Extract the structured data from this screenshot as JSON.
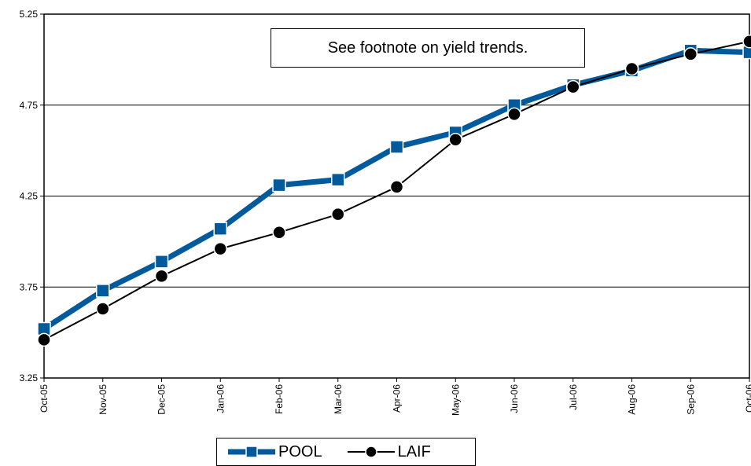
{
  "chart_data": {
    "type": "line",
    "title": "",
    "xlabel": "",
    "ylabel": "",
    "categories": [
      "Oct-05",
      "Nov-05",
      "Dec-05",
      "Jan-06",
      "Feb-06",
      "Mar-06",
      "Apr-06",
      "May-06",
      "Jun-06",
      "Jul-06",
      "Aug-06",
      "Sep-06",
      "Oct-06"
    ],
    "ylim": [
      3.25,
      5.25
    ],
    "yticks": [
      "3.25",
      "3.75",
      "4.25",
      "4.75",
      "5.25"
    ],
    "grid": true,
    "legend_position": "bottom",
    "annotation": "See footnote on yield trends.",
    "series": [
      {
        "name": "POOL",
        "color": "#005a9c",
        "marker": "square",
        "values": [
          3.52,
          3.73,
          3.89,
          4.07,
          4.31,
          4.34,
          4.52,
          4.6,
          4.75,
          4.86,
          4.94,
          5.05,
          5.04
        ]
      },
      {
        "name": "LAIF",
        "color": "#000000",
        "marker": "circle",
        "values": [
          3.46,
          3.63,
          3.81,
          3.96,
          4.05,
          4.15,
          4.3,
          4.56,
          4.7,
          4.85,
          4.95,
          5.03,
          5.1
        ]
      }
    ]
  }
}
